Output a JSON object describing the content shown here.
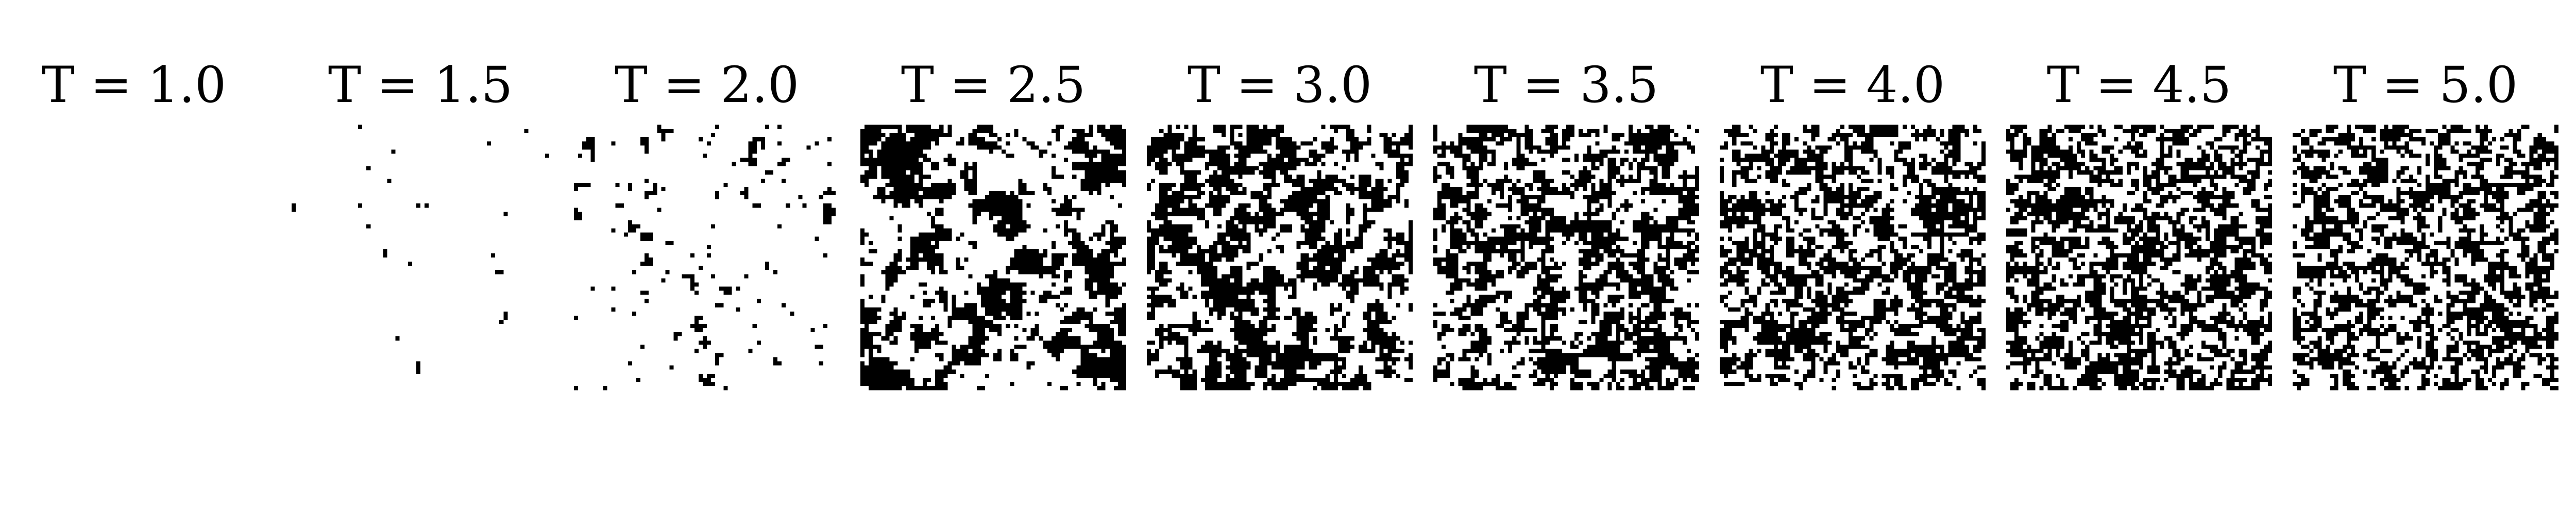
{
  "figure": {
    "panels": [
      {
        "title": "T = 1.0",
        "temperature": 1.0
      },
      {
        "title": "T = 1.5",
        "temperature": 1.5
      },
      {
        "title": "T = 2.0",
        "temperature": 2.0
      },
      {
        "title": "T = 2.5",
        "temperature": 2.5
      },
      {
        "title": "T = 3.0",
        "temperature": 3.0
      },
      {
        "title": "T = 3.5",
        "temperature": 3.5
      },
      {
        "title": "T = 4.0",
        "temperature": 4.0
      },
      {
        "title": "T = 4.5",
        "temperature": 4.5
      },
      {
        "title": "T = 5.0",
        "temperature": 5.0
      }
    ],
    "colors": {
      "spin_up": "#ffffff",
      "spin_down": "#000000",
      "background": "#ffffff"
    }
  }
}
